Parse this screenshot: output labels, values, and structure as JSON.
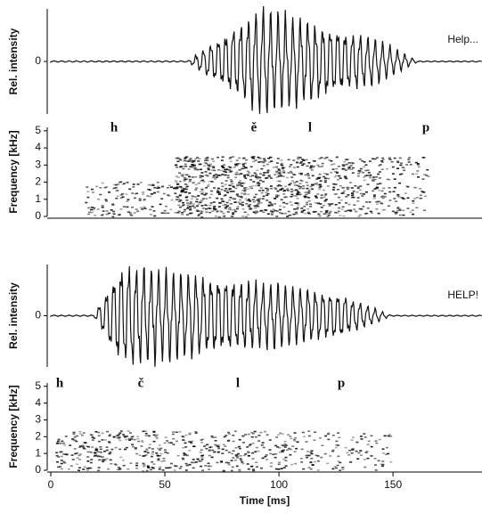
{
  "chart_data": [
    {
      "type": "waveform",
      "ylabel": "Rel. intensity",
      "label": "Help...",
      "ylim": [
        -1,
        1
      ],
      "yticks": [
        0
      ]
    },
    {
      "type": "spectrogram",
      "ylabel": "Frequency [kHz]",
      "ylim": [
        0,
        5.2
      ],
      "yticks": [
        0,
        1,
        2,
        3,
        4,
        5
      ],
      "segments": [
        "h",
        "ě",
        "l",
        "p"
      ]
    },
    {
      "type": "waveform",
      "ylabel": "Rel. intensity",
      "label": "HELP!",
      "ylim": [
        -1,
        1
      ],
      "yticks": [
        0
      ]
    },
    {
      "type": "spectrogram",
      "ylabel": "Frequency [kHz]",
      "ylim": [
        0,
        5.2
      ],
      "yticks": [
        0,
        1,
        2,
        3,
        4,
        5
      ],
      "segments": [
        "h",
        "č",
        "l",
        "p"
      ],
      "xlabel": "Time [ms]",
      "xlim": [
        0,
        189
      ],
      "xticks": [
        0,
        50,
        100,
        150
      ]
    }
  ]
}
